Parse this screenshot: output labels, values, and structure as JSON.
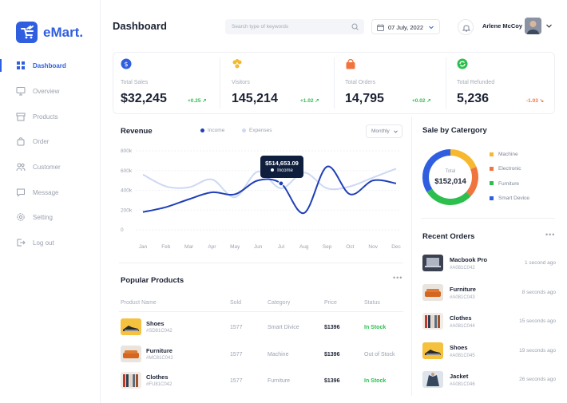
{
  "brand": {
    "name": "eMart.",
    "accent": "#2f5fe0"
  },
  "nav": [
    {
      "label": "Dashboard",
      "icon": "grid-icon",
      "active": true
    },
    {
      "label": "Overview",
      "icon": "monitor-icon"
    },
    {
      "label": "Products",
      "icon": "box-icon"
    },
    {
      "label": "Order",
      "icon": "bag-icon"
    },
    {
      "label": "Customer",
      "icon": "users-icon"
    },
    {
      "label": "Message",
      "icon": "chat-icon"
    },
    {
      "label": "Setting",
      "icon": "gear-icon"
    },
    {
      "label": "Log out",
      "icon": "logout-icon"
    }
  ],
  "header": {
    "title": "Dashboard",
    "search_placeholder": "Search type of keywords",
    "date": "07 July, 2022",
    "user_name": "Arlene McCoy"
  },
  "stats": [
    {
      "label": "Total Sales",
      "value": "$32,245",
      "change": "+0.25",
      "trend": "up",
      "icon": "coin-icon",
      "color": "#2f5fe0"
    },
    {
      "label": "Visitors",
      "value": "145,214",
      "change": "+1.02",
      "trend": "up",
      "icon": "people-icon",
      "color": "#f5b82e"
    },
    {
      "label": "Total Orders",
      "value": "14,795",
      "change": "+0.02",
      "trend": "up",
      "icon": "shopping-bag-icon",
      "color": "#f0743e"
    },
    {
      "label": "Total Refunded",
      "value": "5,236",
      "change": "-1.03",
      "trend": "down",
      "icon": "refund-icon",
      "color": "#2dbf4e"
    }
  ],
  "revenue": {
    "title": "Revenue",
    "legend": [
      {
        "name": "Income",
        "color": "#1f3fb8"
      },
      {
        "name": "Expenses",
        "color": "#cdd8f3"
      }
    ],
    "period": "Monthly",
    "tooltip": {
      "value": "$514,653.09",
      "label": "Income"
    }
  },
  "chart_data": {
    "type": "line",
    "x": [
      "Jan",
      "Feb",
      "Mar",
      "Apr",
      "May",
      "Jun",
      "Jul",
      "Aug",
      "Sep",
      "Oct",
      "Nov",
      "Dec"
    ],
    "y_ticks": [
      "0",
      "200k",
      "400k",
      "600k",
      "800k"
    ],
    "ylim": [
      0,
      800000
    ],
    "series": [
      {
        "name": "Income",
        "values": [
          180000,
          230000,
          310000,
          380000,
          360000,
          500000,
          470000,
          170000,
          640000,
          360000,
          500000,
          470000
        ]
      },
      {
        "name": "Expenses",
        "values": [
          560000,
          440000,
          430000,
          510000,
          330000,
          590000,
          420000,
          580000,
          420000,
          440000,
          530000,
          620000
        ]
      }
    ]
  },
  "category": {
    "title": "Sale by Catergory",
    "total_label": "Total",
    "total_value": "$152,014",
    "items": [
      {
        "name": "Machine",
        "color": "#f5b82e",
        "share": 0.19
      },
      {
        "name": "Electronic",
        "color": "#f0743e",
        "share": 0.18
      },
      {
        "name": "Furniture",
        "color": "#2dbf4e",
        "share": 0.29
      },
      {
        "name": "Smart Device",
        "color": "#2f5fe0",
        "share": 0.34
      }
    ]
  },
  "popular": {
    "title": "Popular Products",
    "headers": [
      "Product Name",
      "Sold",
      "Category",
      "Price",
      "Status"
    ],
    "rows": [
      {
        "name": "Shoes",
        "code": "#SD81C042",
        "sold": "1577",
        "category": "Smart Divice",
        "price": "$1396",
        "status": "In Stock",
        "status_color": "#2dbf4e"
      },
      {
        "name": "Furniture",
        "code": "#MC81C042",
        "sold": "1577",
        "category": "Machine",
        "price": "$1396",
        "status": "Out of Stock",
        "status_color": "#9aa1ae"
      },
      {
        "name": "Clothes",
        "code": "#FU81C042",
        "sold": "1577",
        "category": "Furniture",
        "price": "$1396",
        "status": "In Stock",
        "status_color": "#2dbf4e"
      }
    ]
  },
  "recent": {
    "title": "Recent Orders",
    "items": [
      {
        "name": "Macbook Pro",
        "code": "#A081C042",
        "time": "1 second ago"
      },
      {
        "name": "Furniture",
        "code": "#A081C043",
        "time": "8 seconds ago"
      },
      {
        "name": "Clothes",
        "code": "#A081C044",
        "time": "15 seconds ago"
      },
      {
        "name": "Shoes",
        "code": "#A081C045",
        "time": "19 seconds ago"
      },
      {
        "name": "Jacket",
        "code": "#A081C046",
        "time": "26 seconds ago"
      }
    ]
  }
}
